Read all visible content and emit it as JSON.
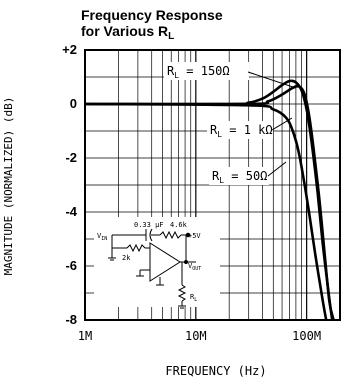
{
  "chart_data": {
    "type": "line",
    "title": "Frequency Response",
    "subtitle_prefix": "for Various R",
    "subtitle_sub": "L",
    "xlabel": "FREQUENCY (Hz)",
    "ylabel": "MAGNITUDE (NORMALIZED) (dB)",
    "xscale": "log",
    "xlim": [
      1000000,
      200000000
    ],
    "ylim": [
      -8,
      2
    ],
    "grid": true,
    "x_ticks": [
      {
        "value": 1000000,
        "label": "1M"
      },
      {
        "value": 10000000,
        "label": "10M"
      },
      {
        "value": 100000000,
        "label": "100M"
      }
    ],
    "y_ticks": [
      {
        "value": 2,
        "label": "+2"
      },
      {
        "value": 0,
        "label": "0"
      },
      {
        "value": -2,
        "label": "-2"
      },
      {
        "value": -4,
        "label": "-4"
      },
      {
        "value": -6,
        "label": "-6"
      },
      {
        "value": -8,
        "label": "-8"
      }
    ],
    "series": [
      {
        "name": "R_L = 150Ω",
        "label_prefix": "R",
        "label_sub": "L",
        "label_rest": " = 150Ω",
        "points": [
          [
            1000000,
            0
          ],
          [
            20000000,
            0
          ],
          [
            30000000,
            0.05
          ],
          [
            40000000,
            0.2
          ],
          [
            50000000,
            0.45
          ],
          [
            60000000,
            0.7
          ],
          [
            70000000,
            0.85
          ],
          [
            80000000,
            0.8
          ],
          [
            90000000,
            0.5
          ],
          [
            100000000,
            -0.2
          ],
          [
            110000000,
            -1.3
          ],
          [
            125000000,
            -3.2
          ],
          [
            140000000,
            -5.2
          ],
          [
            160000000,
            -7.2
          ],
          [
            170000000,
            -8
          ]
        ]
      },
      {
        "name": "R_L = 1kΩ",
        "label_prefix": "R",
        "label_sub": "L",
        "label_rest": " = 1 kΩ",
        "points": [
          [
            1000000,
            0
          ],
          [
            30000000,
            0
          ],
          [
            45000000,
            0.1
          ],
          [
            60000000,
            0.35
          ],
          [
            75000000,
            0.6
          ],
          [
            85000000,
            0.65
          ],
          [
            95000000,
            0.4
          ],
          [
            105000000,
            -0.4
          ],
          [
            115000000,
            -1.6
          ],
          [
            130000000,
            -3.5
          ],
          [
            145000000,
            -5.5
          ],
          [
            160000000,
            -7.3
          ],
          [
            175000000,
            -8
          ]
        ]
      },
      {
        "name": "R_L = 50Ω",
        "label_prefix": "R",
        "label_sub": "L",
        "label_rest": " = 50Ω",
        "points": [
          [
            1000000,
            0
          ],
          [
            30000000,
            -0.05
          ],
          [
            50000000,
            -0.2
          ],
          [
            65000000,
            -0.5
          ],
          [
            75000000,
            -1.0
          ],
          [
            85000000,
            -1.8
          ],
          [
            95000000,
            -2.9
          ],
          [
            105000000,
            -4.0
          ],
          [
            120000000,
            -5.6
          ],
          [
            140000000,
            -7.3
          ],
          [
            150000000,
            -8
          ]
        ]
      }
    ],
    "inset": {
      "cap_label": "0.33 µF",
      "rf_label": "4.6k",
      "rg_label": "2k",
      "vin_label": "V",
      "vin_sub": "IN",
      "vout_label": "V",
      "vout_sub": "OUT",
      "supply_label": "+5V",
      "rl_label": "R",
      "rl_sub": "L"
    }
  }
}
